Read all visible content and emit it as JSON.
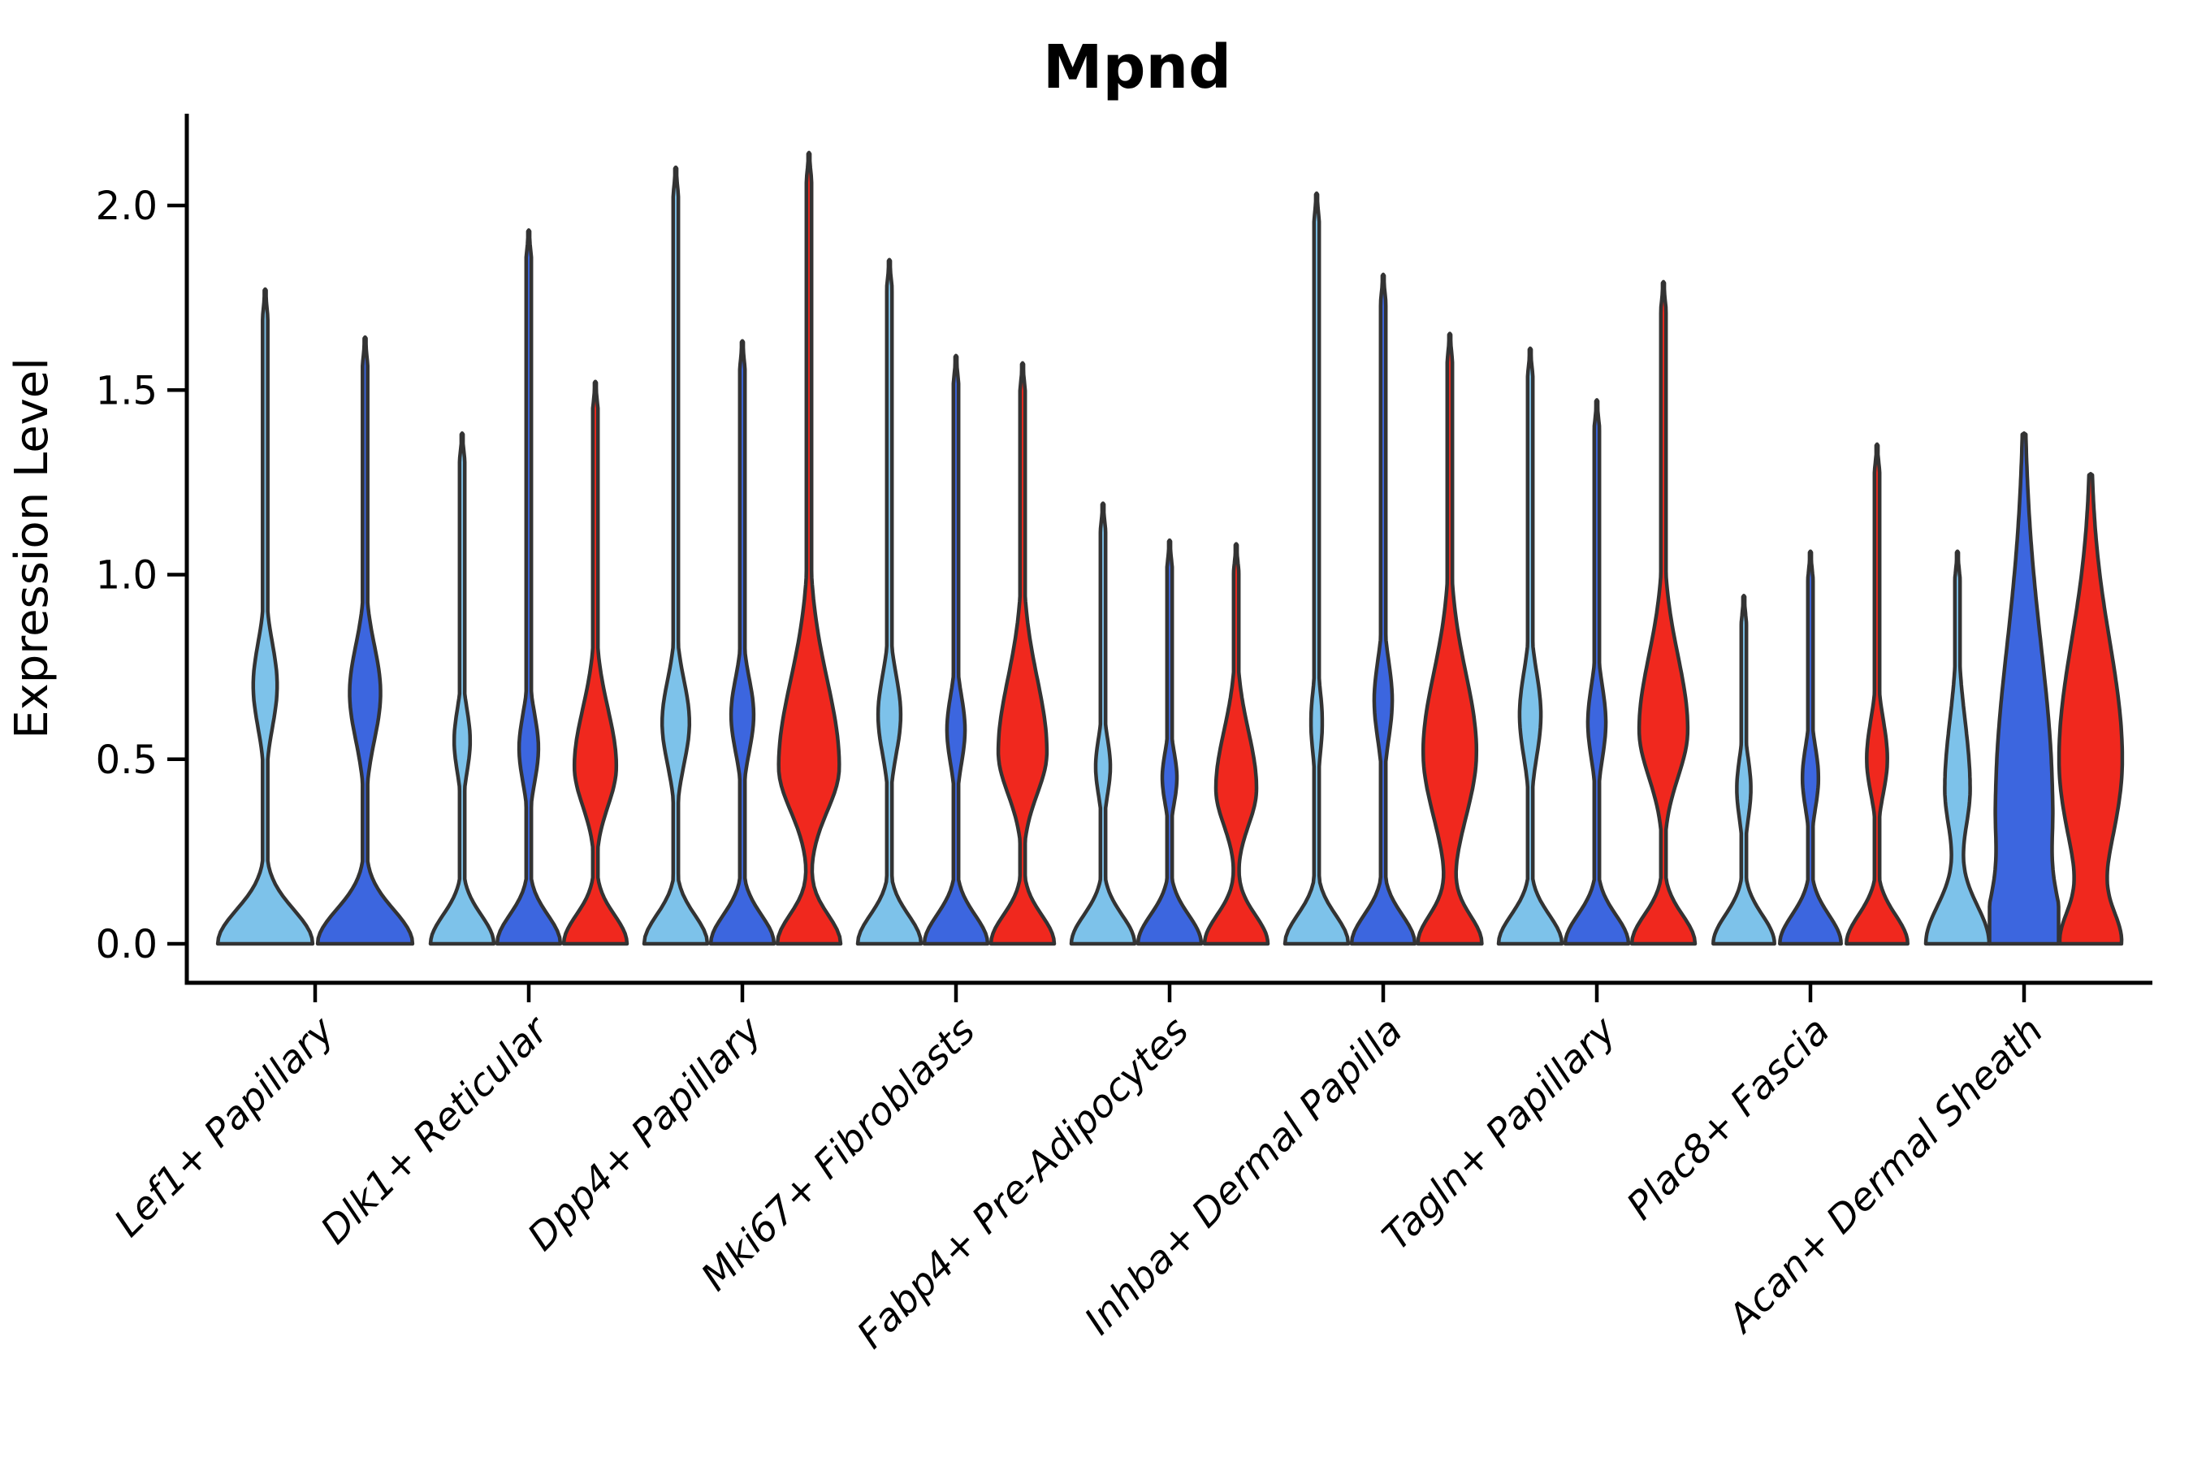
{
  "page": {
    "background": "#ffffff"
  },
  "chart": {
    "title": "Mpnd",
    "ylabel": "Expression Level"
  },
  "chart_data": {
    "type": "violin",
    "title": "Mpnd",
    "xlabel": "",
    "ylabel": "Expression Level",
    "ylim": [
      0,
      2.25
    ],
    "yticks": [
      0.0,
      0.5,
      1.0,
      1.5,
      2.0
    ],
    "ytick_labels": [
      "0.0",
      "0.5",
      "1.0",
      "1.5",
      "2.0"
    ],
    "grid": false,
    "legend_position": "none",
    "colors": {
      "series_1_light_blue": "#7DC2EA",
      "series_2_dark_blue": "#3C66DF",
      "series_3_red": "#F0281E",
      "outline": "#333333",
      "axis": "#000000"
    },
    "categories": [
      "Lef1+ Papillary",
      "Dlk1+ Reticular",
      "Dpp4+ Papillary",
      "Mki67+ Fibroblasts",
      "Fabp4+ Pre-Adipocytes",
      "Inhba+ Dermal Papilla",
      "Tagln+ Papillary",
      "Plac8+ Fascia",
      "Acan+ Dermal Sheath"
    ],
    "groups": [
      {
        "category": "Lef1+ Papillary",
        "violins": [
          {
            "series": 0,
            "max": 1.77,
            "mode": 0.7,
            "mode_w": 0.24,
            "sigma_dn": 0.16,
            "sigma_up": 0.16,
            "base_w": 0.95,
            "base_sigma": 0.13
          },
          {
            "series": 1,
            "max": 1.64,
            "mode": 0.68,
            "mode_w": 0.31,
            "sigma_dn": 0.18,
            "sigma_up": 0.18,
            "base_w": 0.95,
            "base_sigma": 0.13
          }
        ]
      },
      {
        "category": "Dlk1+ Reticular",
        "violins": [
          {
            "series": 0,
            "max": 1.38,
            "mode": 0.55,
            "mode_w": 0.24,
            "sigma_dn": 0.12,
            "sigma_up": 0.12,
            "base_w": 0.95,
            "base_sigma": 0.11
          },
          {
            "series": 1,
            "max": 1.93,
            "mode": 0.53,
            "mode_w": 0.29,
            "sigma_dn": 0.13,
            "sigma_up": 0.13,
            "base_w": 0.95,
            "base_sigma": 0.11
          },
          {
            "series": 2,
            "max": 1.52,
            "mode": 0.48,
            "mode_w": 0.63,
            "sigma_dn": 0.15,
            "sigma_up": 0.22,
            "base_w": 0.95,
            "base_sigma": 0.11
          }
        ]
      },
      {
        "category": "Dpp4+ Papillary",
        "violins": [
          {
            "series": 0,
            "max": 2.1,
            "mode": 0.6,
            "mode_w": 0.41,
            "sigma_dn": 0.16,
            "sigma_up": 0.16,
            "base_w": 0.95,
            "base_sigma": 0.11
          },
          {
            "series": 1,
            "max": 1.63,
            "mode": 0.62,
            "mode_w": 0.34,
            "sigma_dn": 0.14,
            "sigma_up": 0.14,
            "base_w": 0.95,
            "base_sigma": 0.11
          },
          {
            "series": 2,
            "max": 2.14,
            "mode": 0.48,
            "mode_w": 0.91,
            "sigma_dn": 0.17,
            "sigma_up": 0.33,
            "base_w": 0.95,
            "base_sigma": 0.11
          }
        ]
      },
      {
        "category": "Mki67+ Fibroblasts",
        "violins": [
          {
            "series": 0,
            "max": 1.85,
            "mode": 0.62,
            "mode_w": 0.34,
            "sigma_dn": 0.15,
            "sigma_up": 0.15,
            "base_w": 0.95,
            "base_sigma": 0.11
          },
          {
            "series": 1,
            "max": 1.59,
            "mode": 0.58,
            "mode_w": 0.27,
            "sigma_dn": 0.13,
            "sigma_up": 0.13,
            "base_w": 0.95,
            "base_sigma": 0.11
          },
          {
            "series": 2,
            "max": 1.57,
            "mode": 0.52,
            "mode_w": 0.73,
            "sigma_dn": 0.16,
            "sigma_up": 0.28,
            "base_w": 0.95,
            "base_sigma": 0.11
          }
        ]
      },
      {
        "category": "Fabp4+ Pre-Adipocytes",
        "violins": [
          {
            "series": 0,
            "max": 1.19,
            "mode": 0.48,
            "mode_w": 0.22,
            "sigma_dn": 0.11,
            "sigma_up": 0.11,
            "base_w": 0.95,
            "base_sigma": 0.11
          },
          {
            "series": 1,
            "max": 1.09,
            "mode": 0.45,
            "mode_w": 0.22,
            "sigma_dn": 0.1,
            "sigma_up": 0.1,
            "base_w": 0.95,
            "base_sigma": 0.11
          },
          {
            "series": 2,
            "max": 1.08,
            "mode": 0.42,
            "mode_w": 0.61,
            "sigma_dn": 0.14,
            "sigma_up": 0.22,
            "base_w": 0.95,
            "base_sigma": 0.11
          }
        ]
      },
      {
        "category": "Inhba+ Dermal Papilla",
        "violins": [
          {
            "series": 0,
            "max": 2.03,
            "mode": 0.6,
            "mode_w": 0.17,
            "sigma_dn": 0.13,
            "sigma_up": 0.13,
            "base_w": 0.95,
            "base_sigma": 0.11
          },
          {
            "series": 1,
            "max": 1.81,
            "mode": 0.66,
            "mode_w": 0.27,
            "sigma_dn": 0.15,
            "sigma_up": 0.15,
            "base_w": 0.95,
            "base_sigma": 0.11
          },
          {
            "series": 2,
            "max": 1.65,
            "mode": 0.52,
            "mode_w": 0.8,
            "sigma_dn": 0.25,
            "sigma_up": 0.3,
            "base_w": 0.95,
            "base_sigma": 0.11
          }
        ]
      },
      {
        "category": "Tagln+ Papillary",
        "violins": [
          {
            "series": 0,
            "max": 1.61,
            "mode": 0.62,
            "mode_w": 0.32,
            "sigma_dn": 0.16,
            "sigma_up": 0.16,
            "base_w": 0.95,
            "base_sigma": 0.11
          },
          {
            "series": 1,
            "max": 1.47,
            "mode": 0.6,
            "mode_w": 0.27,
            "sigma_dn": 0.14,
            "sigma_up": 0.14,
            "base_w": 0.95,
            "base_sigma": 0.11
          },
          {
            "series": 2,
            "max": 1.79,
            "mode": 0.58,
            "mode_w": 0.73,
            "sigma_dn": 0.18,
            "sigma_up": 0.28,
            "base_w": 0.95,
            "base_sigma": 0.11
          }
        ]
      },
      {
        "category": "Plac8+ Fascia",
        "violins": [
          {
            "series": 0,
            "max": 0.94,
            "mode": 0.42,
            "mode_w": 0.21,
            "sigma_dn": 0.12,
            "sigma_up": 0.12,
            "base_w": 0.92,
            "base_sigma": 0.11
          },
          {
            "series": 1,
            "max": 1.06,
            "mode": 0.45,
            "mode_w": 0.24,
            "sigma_dn": 0.12,
            "sigma_up": 0.12,
            "base_w": 0.92,
            "base_sigma": 0.11
          },
          {
            "series": 2,
            "max": 1.35,
            "mode": 0.5,
            "mode_w": 0.31,
            "sigma_dn": 0.13,
            "sigma_up": 0.15,
            "base_w": 0.92,
            "base_sigma": 0.11
          }
        ]
      },
      {
        "category": "Acan+ Dermal Sheath",
        "violins": [
          {
            "series": 0,
            "max": 1.06,
            "mode": 0.42,
            "mode_w": 0.38,
            "sigma_dn": 0.16,
            "sigma_up": 0.26,
            "base_w": 0.95,
            "base_sigma": 0.15
          },
          {
            "series": 1,
            "max": 1.38,
            "mode": 0.38,
            "mode_w": 0.85,
            "sigma_dn": 0.3,
            "sigma_up": 0.6,
            "base_w": 0.95,
            "base_sigma": 0.18
          },
          {
            "series": 2,
            "max": 1.27,
            "mode": 0.5,
            "mode_w": 0.95,
            "sigma_dn": 0.35,
            "sigma_up": 0.45,
            "base_w": 0.8,
            "base_sigma": 0.12
          }
        ]
      }
    ]
  }
}
